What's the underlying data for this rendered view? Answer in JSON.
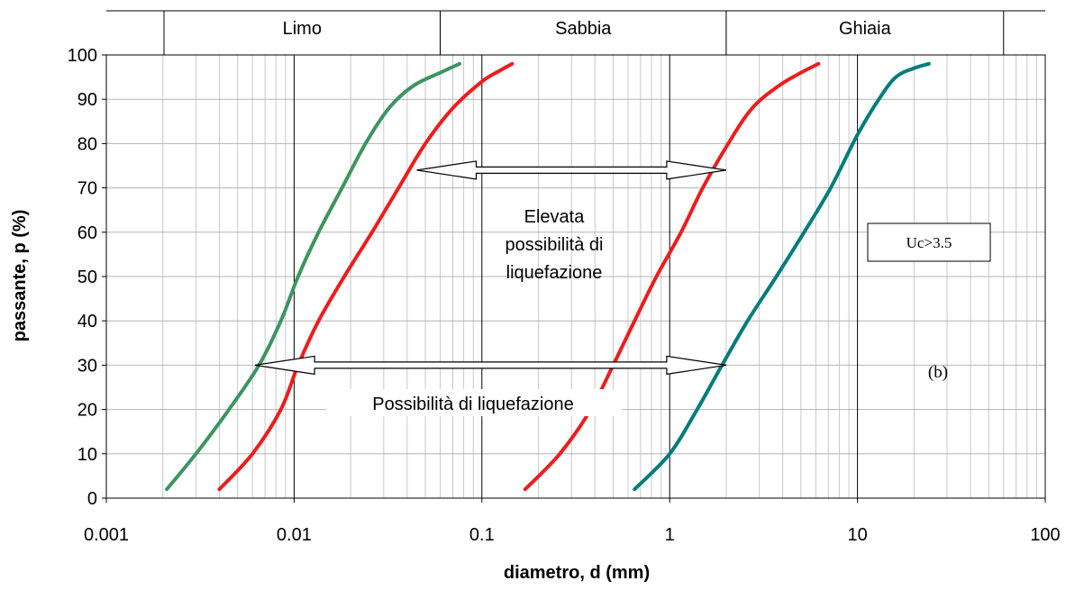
{
  "chart_data": {
    "type": "line",
    "xlabel": "diametro, d (mm)",
    "ylabel": "passante, p (%)",
    "x_scale": "log",
    "xlim": [
      0.001,
      100
    ],
    "ylim": [
      0,
      100
    ],
    "x_tick_labels": [
      "0.001",
      "0.01",
      "0.1",
      "1",
      "10",
      "100"
    ],
    "y_ticks": [
      0,
      10,
      20,
      30,
      40,
      50,
      60,
      70,
      80,
      90,
      100
    ],
    "grid": true,
    "soil_classes": [
      {
        "label": "Limo",
        "from": 0.001,
        "to": 0.06
      },
      {
        "label": "Sabbia",
        "from": 0.06,
        "to": 2
      },
      {
        "label": "Ghiaia",
        "from": 2,
        "to": 60
      }
    ],
    "series": [
      {
        "color": "#3e9460",
        "points": [
          [
            0.0021,
            2
          ],
          [
            0.003,
            10
          ],
          [
            0.0045,
            20
          ],
          [
            0.0065,
            30
          ],
          [
            0.0085,
            40
          ],
          [
            0.0105,
            50
          ],
          [
            0.0135,
            60
          ],
          [
            0.018,
            70
          ],
          [
            0.024,
            80
          ],
          [
            0.032,
            88
          ],
          [
            0.043,
            93
          ],
          [
            0.06,
            96
          ],
          [
            0.076,
            98
          ]
        ]
      },
      {
        "color": "#ee1c1c",
        "points": [
          [
            0.004,
            2
          ],
          [
            0.006,
            10
          ],
          [
            0.0085,
            20
          ],
          [
            0.0105,
            30
          ],
          [
            0.0135,
            40
          ],
          [
            0.0185,
            50
          ],
          [
            0.026,
            60
          ],
          [
            0.036,
            70
          ],
          [
            0.05,
            80
          ],
          [
            0.07,
            88
          ],
          [
            0.1,
            94
          ],
          [
            0.125,
            96.5
          ],
          [
            0.145,
            98
          ]
        ]
      },
      {
        "color": "#ee1c1c",
        "points": [
          [
            0.17,
            2
          ],
          [
            0.26,
            10
          ],
          [
            0.38,
            20
          ],
          [
            0.5,
            30
          ],
          [
            0.65,
            40
          ],
          [
            0.85,
            50
          ],
          [
            1.15,
            60
          ],
          [
            1.5,
            70
          ],
          [
            2.05,
            80
          ],
          [
            2.75,
            88
          ],
          [
            3.8,
            93
          ],
          [
            5,
            96
          ],
          [
            6.2,
            98
          ]
        ]
      },
      {
        "color": "#007c7c",
        "points": [
          [
            0.65,
            2
          ],
          [
            1,
            10
          ],
          [
            1.4,
            20
          ],
          [
            1.9,
            30
          ],
          [
            2.6,
            40
          ],
          [
            3.7,
            50
          ],
          [
            5.2,
            60
          ],
          [
            7.2,
            70
          ],
          [
            10,
            82
          ],
          [
            13,
            90
          ],
          [
            16,
            95
          ],
          [
            20,
            97
          ],
          [
            24,
            98
          ]
        ]
      }
    ],
    "arrows": [
      {
        "from": [
          0.045,
          74
        ],
        "to": [
          2.0,
          74
        ]
      },
      {
        "from": [
          0.0062,
          30
        ],
        "to": [
          2.0,
          30
        ]
      }
    ],
    "annotations": {
      "elevata": [
        "Elevata",
        "possibilità di",
        "liquefazione"
      ],
      "possibilita": "Possibilità di liquefazione",
      "uc": "Uc>3.5",
      "panel": "(b)"
    }
  }
}
